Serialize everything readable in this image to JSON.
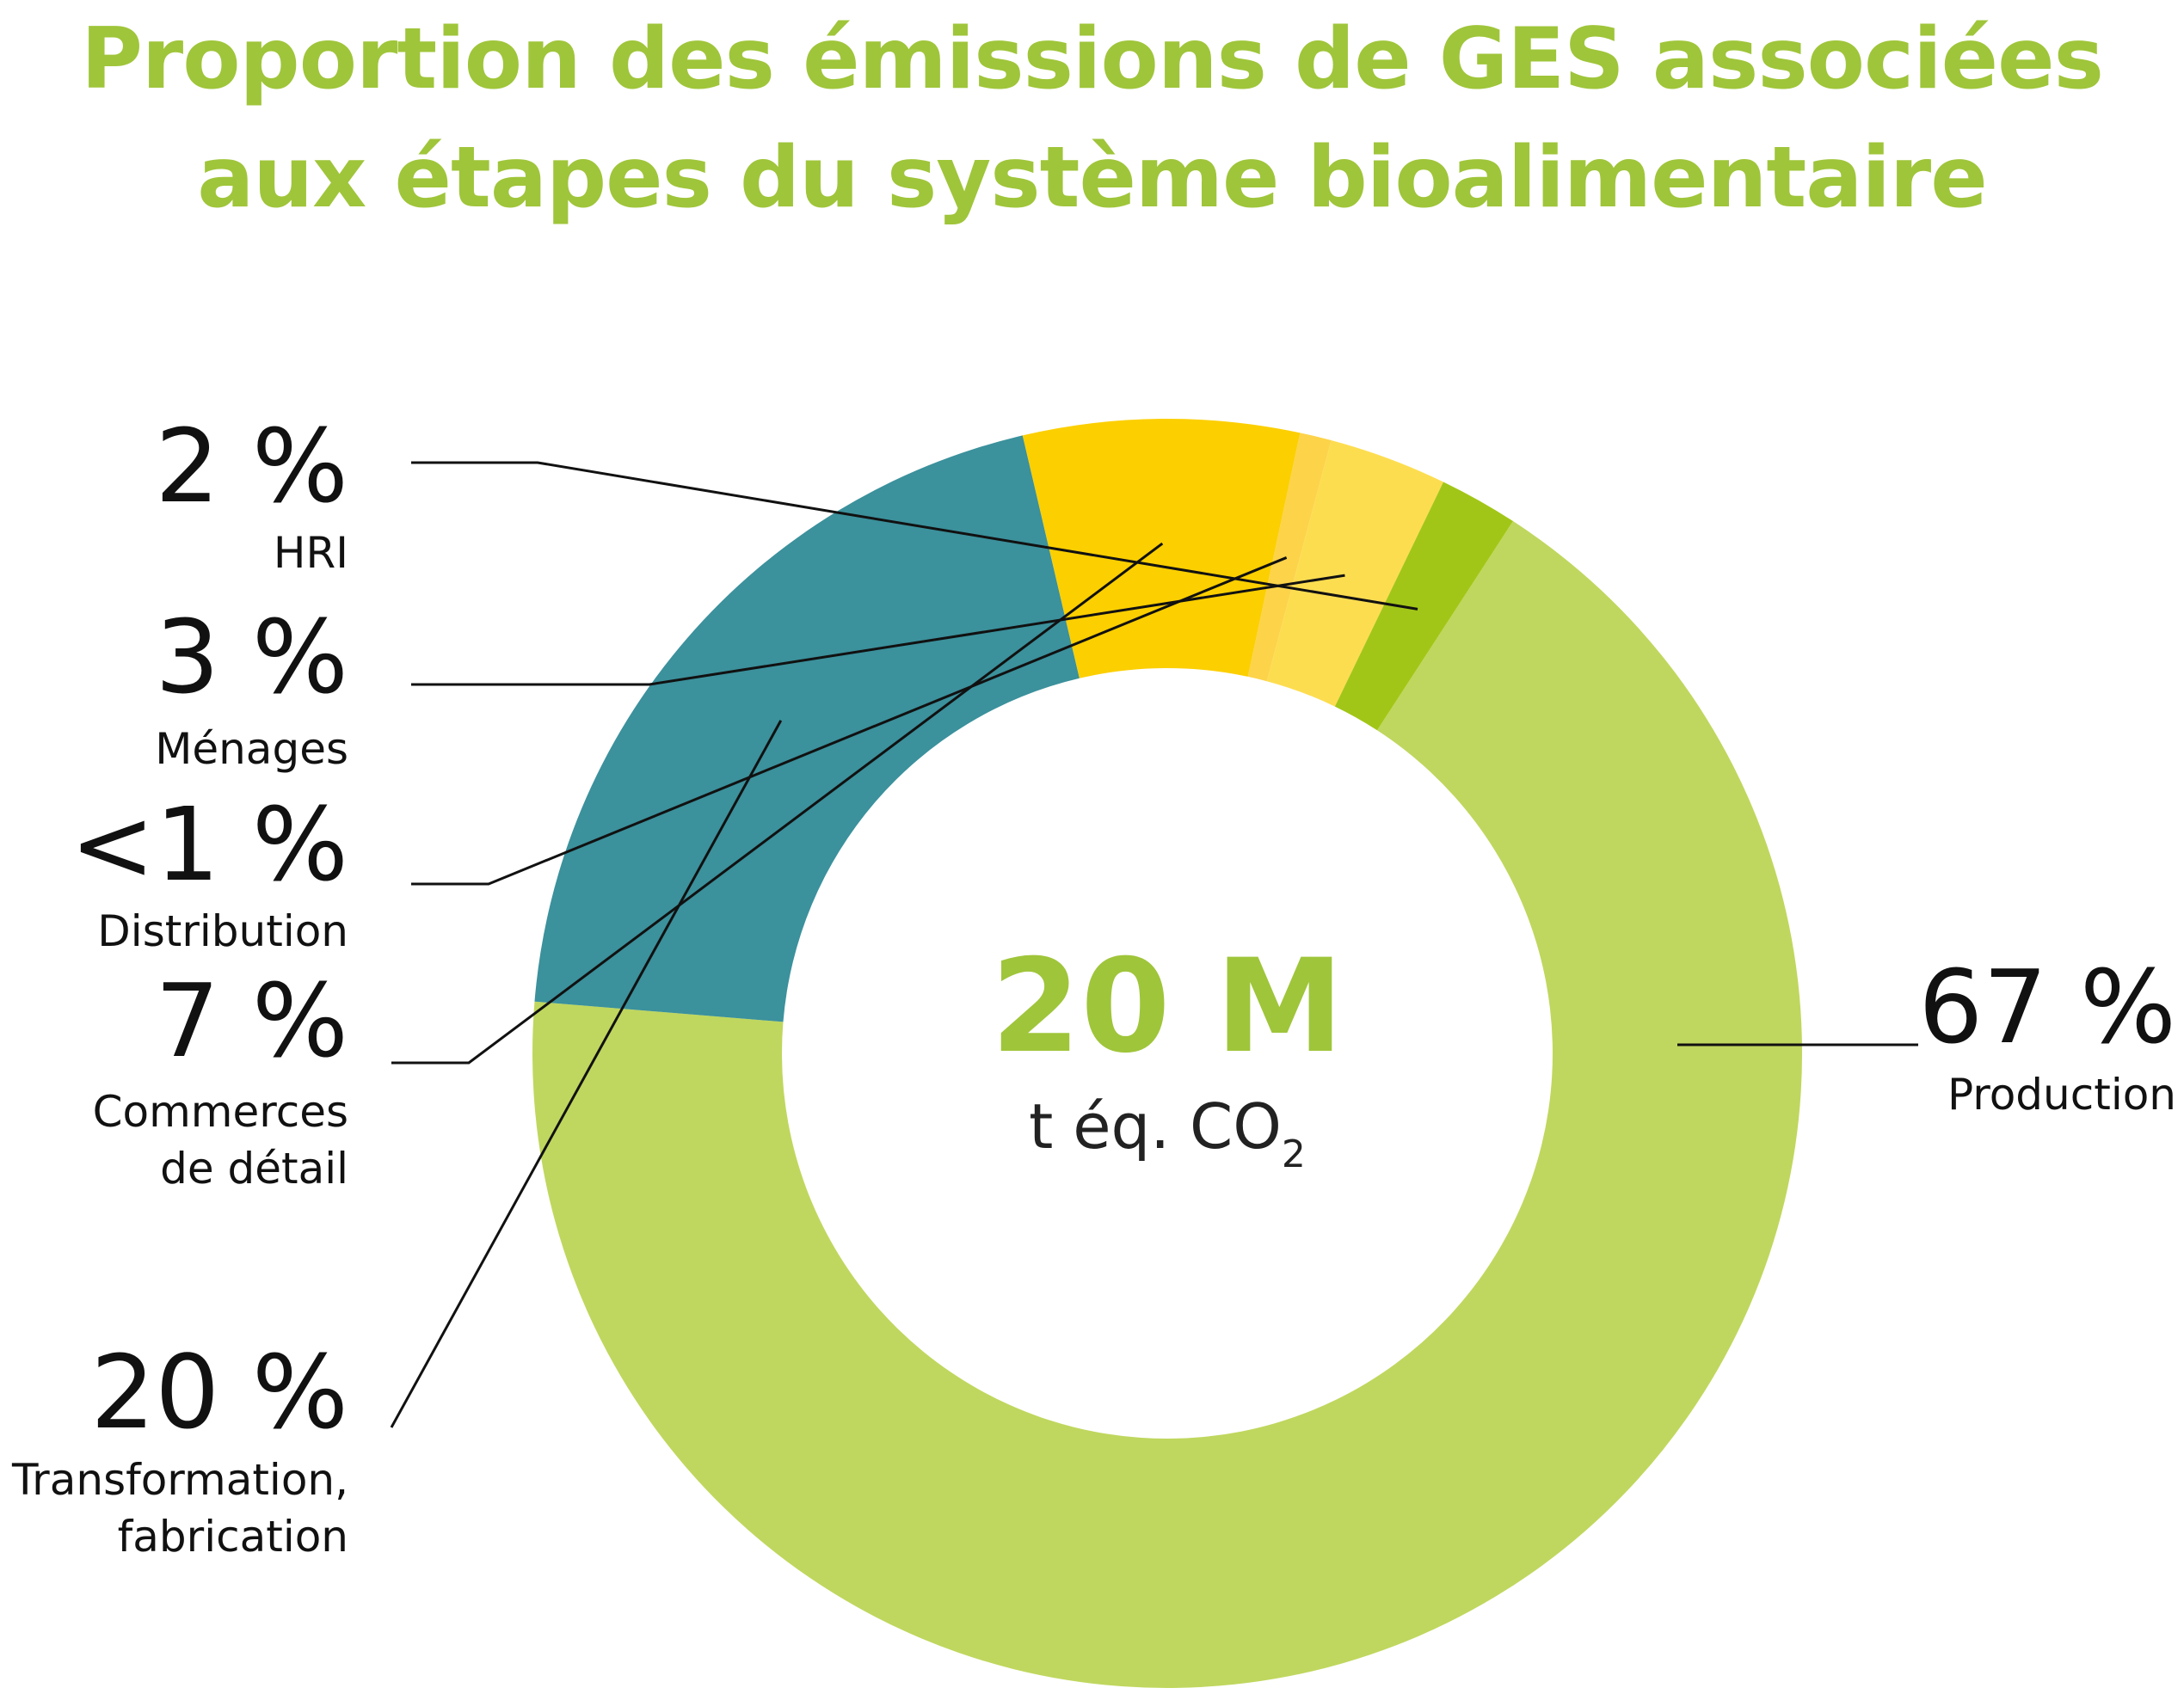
{
  "title_lines": [
    "Proportion des émissions de GES associées",
    "aux étapes du système bioalimentaire"
  ],
  "center": {
    "value": "20 M",
    "unit_prefix": "t éq. CO",
    "unit_subscript": "2"
  },
  "colors": {
    "title": "#9fc53a",
    "production": "#bfd75e",
    "hri": "#a2c617",
    "menages": "#fddd50",
    "distribution": "#fdd34a",
    "commerces": "#fccf00",
    "transformation": "#3b919c"
  },
  "chart_data": {
    "type": "pie",
    "donut": true,
    "title": "Proportion des émissions de GES associées aux étapes du système bioalimentaire",
    "total": "20 M t éq. CO2",
    "slices": [
      {
        "label": "Production",
        "value": 67,
        "display": "67 %",
        "label_lines": [
          "Production"
        ],
        "color": "#bfd75e"
      },
      {
        "label": "Transformation, fabrication",
        "value": 20,
        "display": "20 %",
        "label_lines": [
          "Transformation,",
          "fabrication"
        ],
        "color": "#3b919c"
      },
      {
        "label": "Commerces de détail",
        "value": 7,
        "display": "7 %",
        "label_lines": [
          "Commerces",
          "de détail"
        ],
        "color": "#fccf00"
      },
      {
        "label": "Distribution",
        "value": 0.8,
        "display": "<1 %",
        "label_lines": [
          "Distribution"
        ],
        "color": "#fdd34a"
      },
      {
        "label": "Ménages",
        "value": 3,
        "display": "3 %",
        "label_lines": [
          "Ménages"
        ],
        "color": "#fddd50"
      },
      {
        "label": "HRI",
        "value": 2,
        "display": "2 %",
        "label_lines": [
          "HRI"
        ],
        "color": "#a2c617"
      }
    ]
  }
}
